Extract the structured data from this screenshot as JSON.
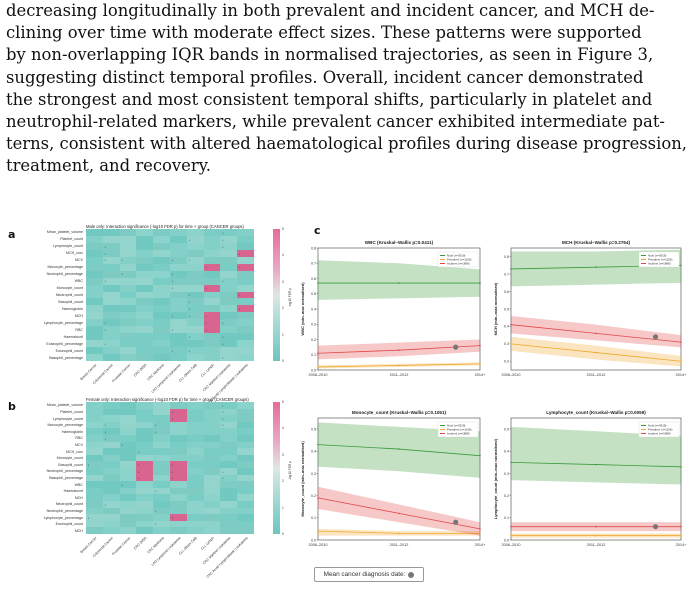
{
  "paragraph": {
    "lines": [
      "decreasing longitudinally in both prevalent and incident cancer, and MCH de-",
      "clining over time with moderate effect sizes. These patterns were supported",
      "by non-overlapping IQR bands in normalised trajectories, as seen in Figure 3,",
      "suggesting distinct temporal profiles.  Overall, incident cancer demonstrated",
      "the strongest and most consistent temporal shifts, particularly in platelet and",
      "neutrophil-related markers, while prevalent cancer exhibited intermediate pat-",
      "terns, consistent with altered haematological profiles during disease progression,",
      "treatment, and recovery."
    ]
  },
  "panels": {
    "a": "a",
    "b": "b",
    "c": "c"
  },
  "heatmap_a": {
    "title": "Male only: Interaction significance (-log10 FDR p) for time × group (CANCER groups)",
    "rows": [
      "Mean_platelet_volume",
      "Platelet_count",
      "Lymphocyte_count",
      "MCH_corc",
      "MCV",
      "Monocyte_percentage",
      "Neutrophil_percentage",
      "WBC",
      "Monocyte_count",
      "Neutrophil_count",
      "Basophil_count",
      "Haemoglobin",
      "MCH",
      "Lymphocyte_percentage",
      "RBC",
      "Haematocrit",
      "Eosinophil_percentage",
      "Eosinophil_count",
      "Basophil_percentage"
    ],
    "cols": [
      "Breast Cancer",
      "Colorectal Cancer",
      "Prostate Cancer",
      "CRC (MSI)",
      "CRC Myeloma",
      "LPD Lymphoid Leukaemia",
      "CLL (Stem Cell)",
      "CLL Lymph",
      "CRC Myeloid Leukaemia",
      "CRC Acute Lymphoblastic Leukaemia"
    ],
    "colorbar_ticks": [
      "5",
      "4",
      "3",
      "2",
      "1",
      "0"
    ],
    "colorbar_label": "-log10 FDR p"
  },
  "heatmap_b": {
    "title": "Female only: Interaction significance (-log10 FDR p) for time × group (CANCER groups)",
    "rows": [
      "Mean_platelet_volume",
      "Platelet_count",
      "Lymphocyte_count",
      "Monocyte_percentage",
      "Haemoglobin",
      "RBC",
      "MCV",
      "MCH_corc",
      "Monocyte_count",
      "Basophil_count",
      "Neutrophil_percentage",
      "Basophil_percentage",
      "WBC",
      "Haematocrit",
      "MCH",
      "Neutrophil_count",
      "Neutrophil_percentage",
      "Lymphocyte_percentage",
      "Eosinophil_count",
      "MCH"
    ],
    "cols": [
      "Breast Cancer",
      "Colorectal Cancer",
      "Prostate Cancer",
      "CRC (MSI)",
      "CRC Myeloma",
      "LPD Lymphoid Leukaemia",
      "CLL (Stem Cell)",
      "CLL Lymph",
      "CRC Myeloid Leukaemia",
      "CRC Acute Lymphoblastic Leukaemia"
    ],
    "colorbar_ticks": [
      "5",
      "4",
      "3",
      "2",
      "1",
      "0"
    ],
    "colorbar_label": "-log10 FDR p"
  },
  "chart_data": [
    {
      "type": "line",
      "title": "WBC (Kruskal–Wallis p=0.0411)",
      "xlabel": "",
      "ylabel": "WBC (min–max normalised)",
      "categories": [
        "2006–2010",
        "2011–2012",
        "2014+"
      ],
      "ylim": [
        0.0,
        0.8
      ],
      "yticks": [
        "0.0",
        "0.1",
        "0.2",
        "0.3",
        "0.4",
        "0.5",
        "0.6",
        "0.7",
        "0.8"
      ],
      "series": [
        {
          "name": "Noid (n=3919)",
          "color": "#3a9a3a",
          "values": [
            0.57,
            0.57,
            0.57
          ],
          "band_lo": [
            0.46,
            0.47,
            0.48
          ],
          "band_hi": [
            0.72,
            0.7,
            0.66
          ]
        },
        {
          "name": "Prevalent (n=1156)",
          "color": "#f0a830",
          "values": [
            0.02,
            0.03,
            0.04
          ],
          "band_lo": [
            0.01,
            0.02,
            0.03
          ],
          "band_hi": [
            0.03,
            0.04,
            0.05
          ]
        },
        {
          "name": "Incident (n=1888)",
          "color": "#e04848",
          "values": [
            0.11,
            0.13,
            0.16
          ],
          "band_lo": [
            0.07,
            0.09,
            0.12
          ],
          "band_hi": [
            0.16,
            0.18,
            0.2
          ]
        }
      ],
      "marker": {
        "x": 0.85,
        "y": 0.15
      },
      "legend": "top-right"
    },
    {
      "type": "line",
      "title": "MCH (Kruskal–Wallis p=0.2764)",
      "xlabel": "",
      "ylabel": "MCH (min–max normalised)",
      "categories": [
        "2006–2010",
        "2011–2012",
        "2014+"
      ],
      "ylim": [
        0.15,
        0.85
      ],
      "yticks": [
        "0.2",
        "0.3",
        "0.4",
        "0.5",
        "0.6",
        "0.7",
        "0.8"
      ],
      "series": [
        {
          "name": "Noid (n=3919)",
          "color": "#3a9a3a",
          "values": [
            0.73,
            0.74,
            0.75
          ],
          "band_lo": [
            0.63,
            0.64,
            0.65
          ],
          "band_hi": [
            0.83,
            0.83,
            0.84
          ]
        },
        {
          "name": "Prevalent (n=1156)",
          "color": "#f0a830",
          "values": [
            0.3,
            0.25,
            0.2
          ],
          "band_lo": [
            0.26,
            0.21,
            0.17
          ],
          "band_hi": [
            0.34,
            0.29,
            0.23
          ]
        },
        {
          "name": "Incident (n=1888)",
          "color": "#e04848",
          "values": [
            0.41,
            0.36,
            0.31
          ],
          "band_lo": [
            0.36,
            0.32,
            0.28
          ],
          "band_hi": [
            0.46,
            0.41,
            0.35
          ]
        }
      ],
      "marker": {
        "x": 0.85,
        "y": 0.34
      },
      "legend": "top-right"
    },
    {
      "type": "line",
      "title": "Monocyte_count (Kruskal–Wallis p=0.1051)",
      "xlabel": "",
      "ylabel": "Monocyte_count (min–max normalised)",
      "categories": [
        "2006–2010",
        "2011–2012",
        "2014+"
      ],
      "ylim": [
        0.0,
        0.55
      ],
      "yticks": [
        "0.0",
        "0.1",
        "0.2",
        "0.3",
        "0.4",
        "0.5"
      ],
      "series": [
        {
          "name": "Noid (n=3919)",
          "color": "#3a9a3a",
          "values": [
            0.43,
            0.41,
            0.38
          ],
          "band_lo": [
            0.33,
            0.31,
            0.28
          ],
          "band_hi": [
            0.53,
            0.51,
            0.49
          ]
        },
        {
          "name": "Prevalent (n=1156)",
          "color": "#f0a830",
          "values": [
            0.04,
            0.03,
            0.03
          ],
          "band_lo": [
            0.02,
            0.02,
            0.02
          ],
          "band_hi": [
            0.05,
            0.04,
            0.04
          ]
        },
        {
          "name": "Incident (n=1888)",
          "color": "#e04848",
          "values": [
            0.19,
            0.12,
            0.05
          ],
          "band_lo": [
            0.14,
            0.08,
            0.02
          ],
          "band_hi": [
            0.24,
            0.16,
            0.08
          ]
        }
      ],
      "marker": {
        "x": 0.85,
        "y": 0.08
      },
      "legend": "top-right"
    },
    {
      "type": "line",
      "title": "Lymphocyte_count (Kruskal–Wallis p=0.0059)",
      "xlabel": "",
      "ylabel": "Lymphocyte_count (min–max normalised)",
      "categories": [
        "2006–2010",
        "2011–2012",
        "2014+"
      ],
      "ylim": [
        0.0,
        0.55
      ],
      "yticks": [
        "0.0",
        "0.1",
        "0.2",
        "0.3",
        "0.4",
        "0.5"
      ],
      "series": [
        {
          "name": "Noid (n=3919)",
          "color": "#3a9a3a",
          "values": [
            0.35,
            0.34,
            0.33
          ],
          "band_lo": [
            0.27,
            0.26,
            0.25
          ],
          "band_hi": [
            0.51,
            0.49,
            0.47
          ]
        },
        {
          "name": "Prevalent (n=1156)",
          "color": "#f0a830",
          "values": [
            0.02,
            0.02,
            0.02
          ],
          "band_lo": [
            0.01,
            0.01,
            0.01
          ],
          "band_hi": [
            0.03,
            0.03,
            0.03
          ]
        },
        {
          "name": "Incident (n=1888)",
          "color": "#e04848",
          "values": [
            0.06,
            0.06,
            0.06
          ],
          "band_lo": [
            0.04,
            0.04,
            0.04
          ],
          "band_hi": [
            0.08,
            0.08,
            0.08
          ]
        }
      ],
      "marker": {
        "x": 0.85,
        "y": 0.06
      },
      "legend": "top-right"
    }
  ],
  "footnote": {
    "label": "Mean cancer diagnosis date:"
  }
}
